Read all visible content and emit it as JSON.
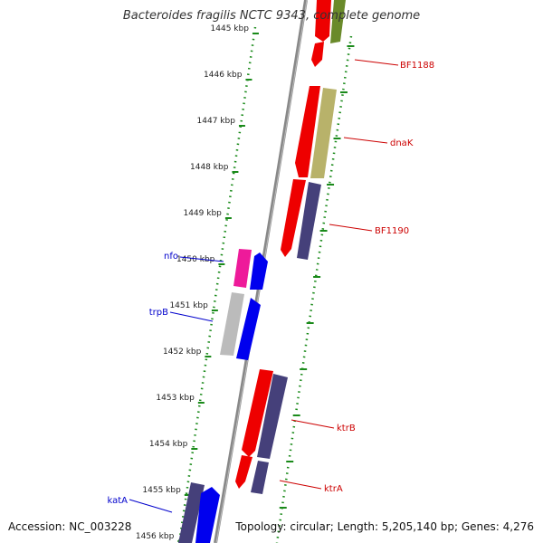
{
  "title": "Bacteroides fragilis NCTC 9343, complete genome",
  "footer": {
    "accession": "Accession: NC_003228",
    "topology": "Topology: circular; Length: 5,205,140 bp; Genes: 4,276"
  },
  "colors": {
    "backbone": "#888888",
    "ruler_dots": "#1a8a1a",
    "tick_label": "#222222",
    "label_line_right": "#cc0000",
    "label_line_left": "#0000cc",
    "red_gene": "#ee0000",
    "blue_gene": "#0000ee",
    "navy_gene": "#45407a",
    "olive_gene": "#b8b26a",
    "dark_green_gene": "#6a8a2a",
    "magenta_gene": "#ee1a9a",
    "grey_gene": "#bbbbbb"
  },
  "ticks": [
    "1445 kbp",
    "1446 kbp",
    "1447 kbp",
    "1448 kbp",
    "1449 kbp",
    "1450 kbp",
    "1451 kbp",
    "1452 kbp",
    "1453 kbp",
    "1454 kbp",
    "1455 kbp",
    "1456 kbp"
  ],
  "gene_labels": [
    {
      "name": "BF1188",
      "side": "right"
    },
    {
      "name": "dnaK",
      "side": "right"
    },
    {
      "name": "BF1190",
      "side": "right"
    },
    {
      "name": "ktrB",
      "side": "right"
    },
    {
      "name": "ktrA",
      "side": "right"
    },
    {
      "name": "nfo",
      "side": "left"
    },
    {
      "name": "trpB",
      "side": "left"
    },
    {
      "name": "katA",
      "side": "left"
    }
  ]
}
